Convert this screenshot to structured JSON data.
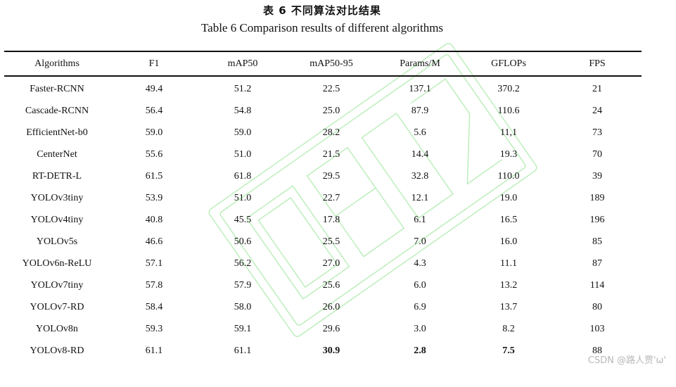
{
  "caption": {
    "cn": "表 6    不同算法对比结果",
    "en": "Table 6    Comparison results of different algorithms"
  },
  "table": {
    "headers": [
      "Algorithms",
      "F1",
      "mAP50",
      "mAP50-95",
      "Params/M",
      "GFLOPs",
      "FPS"
    ],
    "rows": [
      [
        "Faster-RCNN",
        "49.4",
        "51.2",
        "22.5",
        "137.1",
        "370.2",
        "21"
      ],
      [
        "Cascade-RCNN",
        "56.4",
        "54.8",
        "25.0",
        "87.9",
        "110.6",
        "24"
      ],
      [
        "EfficientNet-b0",
        "59.0",
        "59.0",
        "28.2",
        "5.6",
        "11,1",
        "73"
      ],
      [
        "CenterNet",
        "55.6",
        "51.0",
        "21.5",
        "14.4",
        "19.3",
        "70"
      ],
      [
        "RT-DETR-L",
        "61.5",
        "61.8",
        "29.5",
        "32.8",
        "110.0",
        "39"
      ],
      [
        "YOLOv3tiny",
        "53.9",
        "51.0",
        "22.7",
        "12.1",
        "19.0",
        "189"
      ],
      [
        "YOLOv4tiny",
        "40.8",
        "45.5",
        "17.8",
        "6.1",
        "16.5",
        "196"
      ],
      [
        "YOLOv5s",
        "46.6",
        "50.6",
        "25.5",
        "7.0",
        "16.0",
        "85"
      ],
      [
        "YOLOv6n-ReLU",
        "57.1",
        "56.2",
        "27.0",
        "4.3",
        "11.1",
        "87"
      ],
      [
        "YOLOv7tiny",
        "57.8",
        "57.9",
        "25.6",
        "6.0",
        "13.2",
        "114"
      ],
      [
        "YOLOv7-RD",
        "58.4",
        "58.0",
        "26.0",
        "6.9",
        "13.7",
        "80"
      ],
      [
        "YOLOv8n",
        "59.3",
        "59.1",
        "29.6",
        "3.0",
        "8.2",
        "103"
      ],
      [
        "YOLOv8-RD",
        "61.1",
        "61.1",
        "30.9",
        "2.8",
        "7.5",
        "88"
      ]
    ]
  },
  "watermark_text": "CSDN @路人贾'ω'",
  "colors": {
    "stamp": "#7fe07f"
  }
}
